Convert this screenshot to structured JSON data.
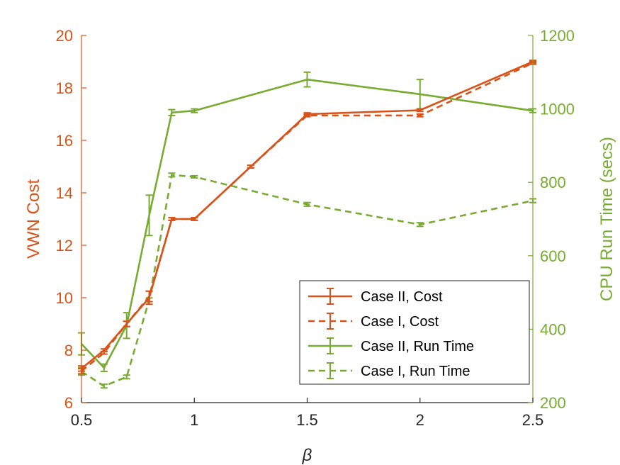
{
  "chart_data": {
    "type": "line",
    "title": "",
    "xlabel": "β",
    "ylabel_left": "VWN Cost",
    "ylabel_right": "CPU Run Time (secs)",
    "xlim": [
      0.5,
      2.5
    ],
    "ylim_left": [
      6,
      20
    ],
    "ylim_right": [
      200,
      1200
    ],
    "x_ticks": [
      "0.5",
      "1",
      "1.5",
      "2",
      "2.5"
    ],
    "y_left_ticks": [
      "6",
      "8",
      "10",
      "12",
      "14",
      "16",
      "18",
      "20"
    ],
    "y_right_ticks": [
      "200",
      "400",
      "600",
      "800",
      "1000",
      "1200"
    ],
    "grid": false,
    "legend_position": "bottom-right",
    "colors": {
      "cost": "#D95319",
      "runtime": "#77AC30"
    },
    "series": [
      {
        "name": "Case II, Cost",
        "axis": "left",
        "style": "solid",
        "color": "#D95319",
        "x": [
          0.5,
          0.6,
          0.7,
          0.8,
          0.9,
          1.0,
          1.25,
          1.5,
          2.0,
          2.5
        ],
        "y": [
          7.3,
          8.0,
          9.0,
          10.0,
          13.0,
          13.0,
          15.0,
          17.0,
          17.15,
          19.0
        ],
        "err": [
          0.1,
          0.05,
          0.1,
          0.25,
          0.05,
          0.05,
          0.05,
          0.05,
          0.05,
          0.05
        ]
      },
      {
        "name": "Case I, Cost",
        "axis": "left",
        "style": "dashed",
        "color": "#D95319",
        "x": [
          0.5,
          0.6,
          0.7,
          0.8,
          0.9,
          1.0,
          1.25,
          1.5,
          2.0,
          2.5
        ],
        "y": [
          7.2,
          7.9,
          9.0,
          10.05,
          13.0,
          13.0,
          15.0,
          16.95,
          16.95,
          18.95
        ],
        "err": [
          0.1,
          0.05,
          0.1,
          0.2,
          0.05,
          0.05,
          0.05,
          0.05,
          0.05,
          0.05
        ]
      },
      {
        "name": "Case II, Run Time",
        "axis": "right",
        "style": "solid",
        "color": "#77AC30",
        "x": [
          0.5,
          0.6,
          0.7,
          0.8,
          0.9,
          1.0,
          1.5,
          2.0,
          2.5
        ],
        "y": [
          360,
          295,
          410,
          710,
          990,
          995,
          1080,
          1040,
          995
        ],
        "err": [
          30,
          10,
          35,
          55,
          8,
          5,
          20,
          40,
          5
        ]
      },
      {
        "name": "Case I, Run Time",
        "axis": "right",
        "style": "dashed",
        "color": "#77AC30",
        "x": [
          0.5,
          0.6,
          0.7,
          0.8,
          0.9,
          1.0,
          1.5,
          2.0,
          2.5
        ],
        "y": [
          285,
          245,
          270,
          480,
          820,
          815,
          740,
          685,
          750
        ],
        "err": [
          10,
          5,
          5,
          5,
          5,
          3,
          5,
          5,
          5
        ]
      }
    ]
  }
}
